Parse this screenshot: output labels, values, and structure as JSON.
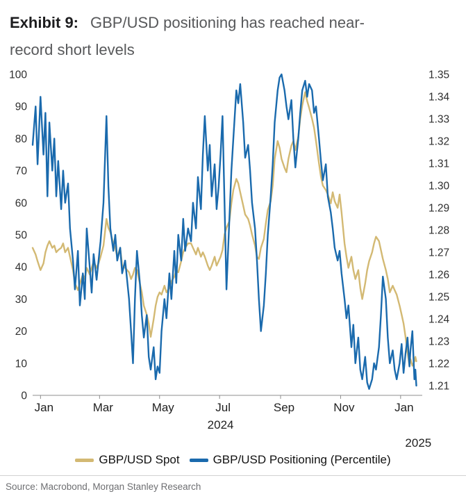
{
  "header": {
    "exhibit_label": "Exhibit 9:",
    "title_lines": [
      "GBP/USD positioning has reached near-",
      "record short levels"
    ]
  },
  "chart_data": {
    "type": "line",
    "title": "Exhibit 9: GBP/USD positioning has reached near-record short levels",
    "x_axis": {
      "unit": "days from 2024-01-01",
      "domain": [
        -8,
        388
      ],
      "ticks": [
        {
          "d": 0,
          "label": "Jan"
        },
        {
          "d": 60,
          "label": "Mar"
        },
        {
          "d": 121,
          "label": "May"
        },
        {
          "d": 182,
          "label": "Jul"
        },
        {
          "d": 244,
          "label": "Sep"
        },
        {
          "d": 305,
          "label": "Nov"
        },
        {
          "d": 366,
          "label": "Jan"
        }
      ],
      "year_labels": [
        {
          "d": 183,
          "label": "2024"
        },
        {
          "d": 384,
          "label": "2025"
        }
      ]
    },
    "left_axis": {
      "range": [
        0,
        100
      ],
      "ticks": [
        0,
        10,
        20,
        30,
        40,
        50,
        60,
        70,
        80,
        90,
        100
      ]
    },
    "right_axis": {
      "range": [
        1.2057,
        1.35
      ],
      "ticks": [
        "1.21",
        "1.22",
        "1.23",
        "1.24",
        "1.25",
        "1.26",
        "1.27",
        "1.28",
        "1.29",
        "1.30",
        "1.31",
        "1.32",
        "1.33",
        "1.34",
        "1.35"
      ]
    },
    "grid": false,
    "legend_position": "bottom",
    "series": [
      {
        "name": "GBP/USD Spot",
        "axis": "right",
        "color": "#d3b973"
      },
      {
        "name": "GBP/USD Positioning (Percentile)",
        "axis": "left",
        "color": "#1a6aad"
      }
    ],
    "points_format": [
      "day",
      "positioning_percentile",
      "spot"
    ],
    "points": [
      [
        -8,
        78,
        1.272
      ],
      [
        -5,
        90,
        1.269
      ],
      [
        -3,
        72,
        1.266
      ],
      [
        0,
        93,
        1.262
      ],
      [
        3,
        75,
        1.265
      ],
      [
        5,
        88,
        1.27
      ],
      [
        7,
        62,
        1.273
      ],
      [
        9,
        85,
        1.275
      ],
      [
        12,
        70,
        1.272
      ],
      [
        14,
        80,
        1.273
      ],
      [
        16,
        62,
        1.27
      ],
      [
        18,
        73,
        1.271
      ],
      [
        21,
        58,
        1.272
      ],
      [
        23,
        70,
        1.274
      ],
      [
        25,
        60,
        1.27
      ],
      [
        28,
        66,
        1.272
      ],
      [
        30,
        52,
        1.268
      ],
      [
        33,
        42,
        1.262
      ],
      [
        35,
        33,
        1.256
      ],
      [
        38,
        45,
        1.253
      ],
      [
        40,
        28,
        1.256
      ],
      [
        43,
        38,
        1.26
      ],
      [
        45,
        30,
        1.258
      ],
      [
        47,
        52,
        1.263
      ],
      [
        50,
        40,
        1.26
      ],
      [
        52,
        32,
        1.263
      ],
      [
        54,
        44,
        1.266
      ],
      [
        57,
        36,
        1.263
      ],
      [
        59,
        42,
        1.265
      ],
      [
        61,
        48,
        1.268
      ],
      [
        64,
        60,
        1.273
      ],
      [
        67,
        87,
        1.285
      ],
      [
        69,
        65,
        1.281
      ],
      [
        71,
        52,
        1.279
      ],
      [
        74,
        45,
        1.274
      ],
      [
        76,
        50,
        1.272
      ],
      [
        78,
        42,
        1.268
      ],
      [
        81,
        46,
        1.272
      ],
      [
        83,
        38,
        1.264
      ],
      [
        86,
        42,
        1.263
      ],
      [
        88,
        36,
        1.262
      ],
      [
        90,
        30,
        1.261
      ],
      [
        92,
        20,
        1.258
      ],
      [
        94,
        10,
        1.26
      ],
      [
        96,
        30,
        1.263
      ],
      [
        98,
        45,
        1.262
      ],
      [
        101,
        35,
        1.256
      ],
      [
        103,
        25,
        1.252
      ],
      [
        105,
        18,
        1.246
      ],
      [
        108,
        25,
        1.242
      ],
      [
        110,
        12,
        1.238
      ],
      [
        112,
        8,
        1.232
      ],
      [
        115,
        15,
        1.24
      ],
      [
        117,
        5,
        1.246
      ],
      [
        119,
        9,
        1.25
      ],
      [
        121,
        7,
        1.252
      ],
      [
        123,
        20,
        1.251
      ],
      [
        126,
        30,
        1.255
      ],
      [
        128,
        24,
        1.252
      ],
      [
        131,
        38,
        1.254
      ],
      [
        133,
        30,
        1.257
      ],
      [
        136,
        45,
        1.259
      ],
      [
        138,
        35,
        1.262
      ],
      [
        140,
        50,
        1.261
      ],
      [
        143,
        42,
        1.266
      ],
      [
        145,
        55,
        1.27
      ],
      [
        147,
        45,
        1.272
      ],
      [
        150,
        52,
        1.274
      ],
      [
        153,
        48,
        1.274
      ],
      [
        155,
        60,
        1.272
      ],
      [
        158,
        52,
        1.269
      ],
      [
        160,
        68,
        1.272
      ],
      [
        163,
        58,
        1.268
      ],
      [
        165,
        75,
        1.27
      ],
      [
        167,
        87,
        1.268
      ],
      [
        170,
        70,
        1.264
      ],
      [
        172,
        78,
        1.262
      ],
      [
        174,
        62,
        1.264
      ],
      [
        177,
        72,
        1.268
      ],
      [
        179,
        58,
        1.264
      ],
      [
        181,
        65,
        1.266
      ],
      [
        183,
        75,
        1.268
      ],
      [
        185,
        87,
        1.271
      ],
      [
        187,
        60,
        1.278
      ],
      [
        189,
        33,
        1.281
      ],
      [
        192,
        55,
        1.284
      ],
      [
        194,
        70,
        1.292
      ],
      [
        196,
        80,
        1.298
      ],
      [
        199,
        95,
        1.303
      ],
      [
        201,
        91,
        1.301
      ],
      [
        203,
        97,
        1.297
      ],
      [
        206,
        85,
        1.291
      ],
      [
        208,
        74,
        1.287
      ],
      [
        211,
        78,
        1.285
      ],
      [
        213,
        70,
        1.282
      ],
      [
        215,
        60,
        1.278
      ],
      [
        218,
        52,
        1.273
      ],
      [
        220,
        42,
        1.268
      ],
      [
        222,
        30,
        1.267
      ],
      [
        224,
        20,
        1.272
      ],
      [
        227,
        28,
        1.276
      ],
      [
        229,
        38,
        1.283
      ],
      [
        231,
        50,
        1.289
      ],
      [
        234,
        62,
        1.293
      ],
      [
        236,
        72,
        1.3
      ],
      [
        238,
        85,
        1.312
      ],
      [
        241,
        95,
        1.32
      ],
      [
        243,
        99,
        1.317
      ],
      [
        245,
        100,
        1.312
      ],
      [
        248,
        95,
        1.308
      ],
      [
        250,
        90,
        1.306
      ],
      [
        252,
        86,
        1.312
      ],
      [
        255,
        92,
        1.318
      ],
      [
        257,
        80,
        1.32
      ],
      [
        259,
        71,
        1.316
      ],
      [
        262,
        80,
        1.322
      ],
      [
        264,
        88,
        1.33
      ],
      [
        266,
        95,
        1.336
      ],
      [
        269,
        98,
        1.342
      ],
      [
        271,
        93,
        1.338
      ],
      [
        273,
        97,
        1.335
      ],
      [
        276,
        95,
        1.33
      ],
      [
        278,
        88,
        1.326
      ],
      [
        280,
        90,
        1.32
      ],
      [
        283,
        80,
        1.31
      ],
      [
        285,
        73,
        1.304
      ],
      [
        287,
        67,
        1.3
      ],
      [
        290,
        72,
        1.298
      ],
      [
        292,
        62,
        1.296
      ],
      [
        295,
        57,
        1.292
      ],
      [
        297,
        52,
        1.297
      ],
      [
        299,
        46,
        1.293
      ],
      [
        302,
        42,
        1.29
      ],
      [
        304,
        45,
        1.296
      ],
      [
        306,
        38,
        1.288
      ],
      [
        309,
        30,
        1.274
      ],
      [
        311,
        24,
        1.268
      ],
      [
        313,
        28,
        1.263
      ],
      [
        316,
        15,
        1.268
      ],
      [
        318,
        22,
        1.262
      ],
      [
        320,
        10,
        1.258
      ],
      [
        323,
        18,
        1.262
      ],
      [
        325,
        8,
        1.254
      ],
      [
        327,
        5,
        1.249
      ],
      [
        330,
        12,
        1.256
      ],
      [
        332,
        4,
        1.262
      ],
      [
        334,
        2,
        1.266
      ],
      [
        337,
        5,
        1.27
      ],
      [
        339,
        10,
        1.274
      ],
      [
        341,
        8,
        1.277
      ],
      [
        344,
        15,
        1.275
      ],
      [
        346,
        25,
        1.271
      ],
      [
        348,
        37,
        1.267
      ],
      [
        351,
        30,
        1.262
      ],
      [
        353,
        18,
        1.258
      ],
      [
        355,
        10,
        1.252
      ],
      [
        358,
        14,
        1.255
      ],
      [
        360,
        8,
        1.253
      ],
      [
        362,
        5,
        1.251
      ],
      [
        365,
        10,
        1.246
      ],
      [
        367,
        16,
        1.242
      ],
      [
        369,
        7,
        1.238
      ],
      [
        371,
        13,
        1.232
      ],
      [
        373,
        18,
        1.225
      ],
      [
        375,
        9,
        1.219
      ],
      [
        376,
        14,
        1.222
      ],
      [
        378,
        20,
        1.219
      ],
      [
        380,
        5,
        1.221
      ],
      [
        381,
        8,
        1.223
      ],
      [
        382,
        3,
        1.221
      ]
    ]
  },
  "legend": {
    "items": [
      {
        "label": "GBP/USD Spot",
        "color": "#d3b973"
      },
      {
        "label": "GBP/USD Positioning (Percentile)",
        "color": "#1a6aad"
      }
    ]
  },
  "footer": {
    "source": "Source: Macrobond, Morgan Stanley Research"
  }
}
